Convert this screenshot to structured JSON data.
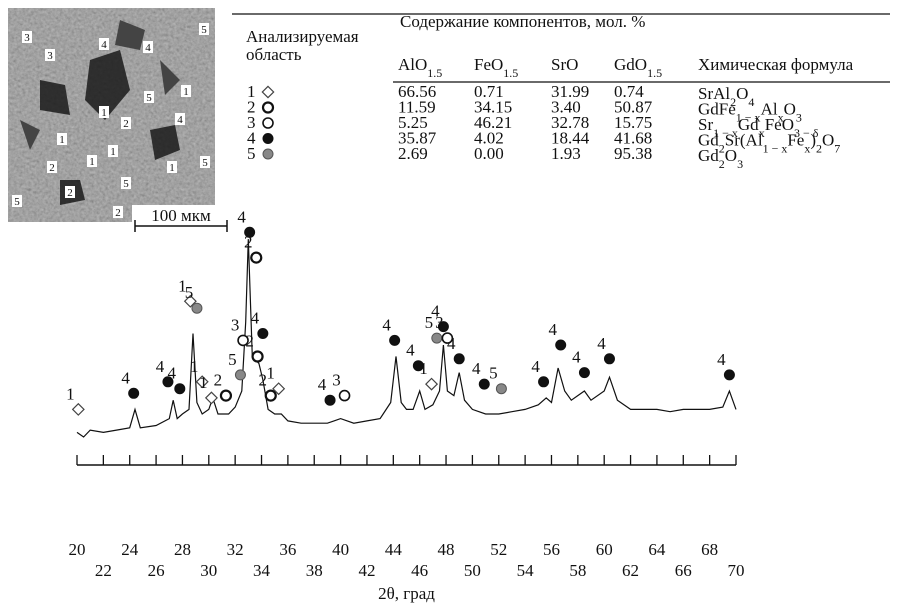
{
  "sem": {
    "labels": [
      "3",
      "3",
      "4",
      "4",
      "5",
      "5",
      "1",
      "1",
      "2",
      "4",
      "1",
      "1",
      "1",
      "2",
      "1",
      "5",
      "5",
      "2",
      "5",
      "2"
    ],
    "scale": "100 мкм"
  },
  "table": {
    "head": [
      "Анализируемая",
      "область"
    ],
    "group": "Содержание компонентов, мол. %",
    "columns": [
      [
        "AlO",
        "1.5"
      ],
      [
        "FeO",
        "1.5"
      ],
      [
        "SrO"
      ],
      [
        "GdO",
        "1.5"
      ],
      [
        "Химическая формула"
      ]
    ],
    "rows": [
      {
        "id": "1",
        "values": [
          "66.56",
          "0.71",
          "31.99",
          "0.74"
        ],
        "formula": [
          "SrAl",
          "2",
          "O",
          "4"
        ]
      },
      {
        "id": "2",
        "values": [
          "11.59",
          "34.15",
          "3.40",
          "50.87"
        ],
        "formula": [
          "GdFe",
          "1 − x",
          "Al",
          "x",
          "O",
          "3"
        ]
      },
      {
        "id": "3",
        "values": [
          "5.25",
          "46.21",
          "32.78",
          "15.75"
        ],
        "formula": [
          "Sr",
          "1 − x",
          "Gd",
          "x",
          "FeO",
          "3 − δ"
        ]
      },
      {
        "id": "4",
        "values": [
          "35.87",
          "4.02",
          "18.44",
          "41.68"
        ],
        "formula": [
          "Gd",
          "2",
          "Sr(Al",
          "1 − x",
          "Fe",
          "x",
          ")",
          "2",
          "O",
          "7"
        ]
      },
      {
        "id": "5",
        "values": [
          "2.69",
          "0.00",
          "1.93",
          "95.38"
        ],
        "formula": [
          "Gd",
          "2",
          "O",
          "3"
        ]
      }
    ]
  },
  "chart_data": {
    "type": "line",
    "x_label": "2θ, град",
    "xlim": [
      20,
      70
    ],
    "ylim": [
      0,
      100
    ],
    "xticks": [
      20,
      22,
      24,
      26,
      28,
      30,
      32,
      34,
      36,
      38,
      40,
      42,
      44,
      46,
      48,
      50,
      52,
      54,
      56,
      58,
      60,
      62,
      64,
      66,
      68,
      70
    ],
    "color": "#111111",
    "x": [
      20,
      20.5,
      21,
      22,
      23,
      24,
      24.4,
      24.8,
      26,
      27,
      27.3,
      27.6,
      28,
      28.5,
      28.8,
      29.1,
      29.5,
      30,
      30.3,
      30.7,
      31.5,
      32,
      32.5,
      32.8,
      33,
      33.3,
      33.8,
      34.1,
      34.5,
      35,
      35.5,
      36,
      37,
      38,
      39,
      39.5,
      40,
      41,
      42,
      43,
      43.8,
      44.2,
      44.6,
      45,
      45.5,
      46,
      46.4,
      47,
      47.5,
      47.8,
      48.1,
      48.6,
      49,
      49.4,
      50,
      51,
      52,
      53,
      54,
      55,
      55.6,
      56,
      56.5,
      57,
      57.5,
      58,
      58.5,
      59,
      60,
      60.4,
      61,
      62,
      63,
      64,
      65,
      66,
      67,
      68,
      69,
      69.5,
      70
    ],
    "values": [
      12,
      10,
      13,
      12,
      13,
      14,
      22,
      14,
      15,
      18,
      26,
      18,
      20,
      22,
      55,
      25,
      20,
      22,
      27,
      20,
      20,
      23,
      30,
      60,
      96,
      45,
      42,
      35,
      22,
      20,
      20,
      17,
      16,
      16,
      16,
      17,
      18,
      16,
      17,
      18,
      25,
      45,
      25,
      22,
      22,
      30,
      22,
      24,
      30,
      50,
      30,
      28,
      38,
      26,
      22,
      20,
      20,
      21,
      22,
      24,
      27,
      25,
      40,
      30,
      26,
      28,
      30,
      26,
      30,
      36,
      26,
      22,
      22,
      22,
      21,
      22,
      22,
      22,
      23,
      30,
      22
    ],
    "peaks": [
      {
        "x": 20.1,
        "y": 22,
        "phase": "1"
      },
      {
        "x": 24.3,
        "y": 29,
        "phase": "4"
      },
      {
        "x": 26.9,
        "y": 34,
        "phase": "4"
      },
      {
        "x": 27.8,
        "y": 31,
        "phase": "4"
      },
      {
        "x": 28.6,
        "y": 69,
        "phase": "1"
      },
      {
        "x": 29.1,
        "y": 66,
        "phase": "5"
      },
      {
        "x": 29.5,
        "y": 34,
        "phase": "1"
      },
      {
        "x": 30.2,
        "y": 27,
        "phase": "1"
      },
      {
        "x": 31.3,
        "y": 28,
        "phase": "2"
      },
      {
        "x": 32.4,
        "y": 37,
        "phase": "5"
      },
      {
        "x": 32.6,
        "y": 52,
        "phase": "3"
      },
      {
        "x": 33.1,
        "y": 99,
        "phase": "4"
      },
      {
        "x": 33.6,
        "y": 88,
        "phase": "2"
      },
      {
        "x": 33.7,
        "y": 45,
        "phase": "2"
      },
      {
        "x": 34.1,
        "y": 55,
        "phase": "4"
      },
      {
        "x": 34.7,
        "y": 28,
        "phase": "2"
      },
      {
        "x": 35.3,
        "y": 31,
        "phase": "1"
      },
      {
        "x": 39.2,
        "y": 26,
        "phase": "4"
      },
      {
        "x": 40.3,
        "y": 28,
        "phase": "3"
      },
      {
        "x": 44.1,
        "y": 52,
        "phase": "4"
      },
      {
        "x": 45.9,
        "y": 41,
        "phase": "4"
      },
      {
        "x": 46.9,
        "y": 33,
        "phase": "1"
      },
      {
        "x": 47.3,
        "y": 53,
        "phase": "5"
      },
      {
        "x": 47.8,
        "y": 58,
        "phase": "4"
      },
      {
        "x": 48.1,
        "y": 53,
        "phase": "3"
      },
      {
        "x": 49.0,
        "y": 44,
        "phase": "4"
      },
      {
        "x": 50.9,
        "y": 33,
        "phase": "4"
      },
      {
        "x": 52.2,
        "y": 31,
        "phase": "5"
      },
      {
        "x": 55.4,
        "y": 34,
        "phase": "4"
      },
      {
        "x": 56.7,
        "y": 50,
        "phase": "4"
      },
      {
        "x": 58.5,
        "y": 38,
        "phase": "4"
      },
      {
        "x": 60.4,
        "y": 44,
        "phase": "4"
      },
      {
        "x": 69.5,
        "y": 37,
        "phase": "4"
      }
    ]
  }
}
